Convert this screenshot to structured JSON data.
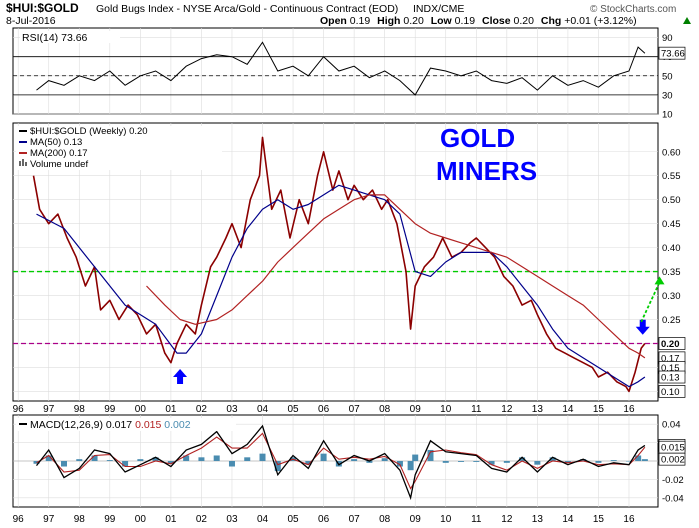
{
  "header": {
    "symbol": "$HUI:$GOLD",
    "name": "Gold Bugs Index - NYSE Arca/Gold - Continuous Contract (EOD)",
    "exchange": "INDX/CME",
    "watermark": "© StockCharts.com",
    "date": "8-Jul-2016",
    "open_label": "Open",
    "open": "0.19",
    "high_label": "High",
    "high": "0.20",
    "low_label": "Low",
    "low": "0.19",
    "close_label": "Close",
    "close": "0.20",
    "chg_label": "Chg",
    "chg": "+0.01 (+3.12%)",
    "chg_icon": "up-triangle",
    "chg_color": "#008000"
  },
  "colors": {
    "price": "#8b0000",
    "price_close": "#000000",
    "ma50": "#00008b",
    "ma200": "#b22222",
    "green_line": "#00cc00",
    "magenta_line": "#aa0088",
    "arrow_blue": "#0000ff",
    "annotation_blue": "#0000ff",
    "macd_hist": "#4a8cb0"
  },
  "annotation": {
    "line1": "GOLD",
    "line2": "MINERS"
  },
  "x_ticks": [
    "96",
    "97",
    "98",
    "99",
    "00",
    "01",
    "02",
    "03",
    "04",
    "05",
    "06",
    "07",
    "08",
    "09",
    "10",
    "11",
    "12",
    "13",
    "14",
    "15",
    "16"
  ],
  "chart_data": [
    {
      "type": "line",
      "panel": "RSI",
      "title": "RSI(14) 73.66",
      "legend_label": "RSI(14)",
      "legend_value": "73.66",
      "ylim": [
        10,
        100
      ],
      "yticks": [
        10,
        30,
        50,
        70,
        90
      ],
      "ref_lines": [
        30,
        50,
        70
      ],
      "last_value": 73.66,
      "last_label": "73.66",
      "x": [
        1996.6,
        1997.0,
        1997.5,
        1998.0,
        1998.5,
        1999.0,
        1999.5,
        2000.0,
        2000.5,
        2001.0,
        2001.5,
        2002.0,
        2002.5,
        2003.0,
        2003.5,
        2004.0,
        2004.5,
        2005.0,
        2005.5,
        2006.0,
        2006.5,
        2007.0,
        2007.5,
        2008.0,
        2008.5,
        2009.0,
        2009.5,
        2010.0,
        2010.5,
        2011.0,
        2011.5,
        2012.0,
        2012.5,
        2013.0,
        2013.5,
        2014.0,
        2014.5,
        2015.0,
        2015.5,
        2016.0,
        2016.3,
        2016.52
      ],
      "values": [
        35,
        45,
        40,
        50,
        45,
        55,
        40,
        50,
        55,
        45,
        60,
        68,
        72,
        70,
        62,
        85,
        55,
        60,
        50,
        70,
        55,
        60,
        48,
        55,
        45,
        30,
        58,
        55,
        50,
        55,
        45,
        42,
        48,
        35,
        50,
        40,
        45,
        38,
        50,
        55,
        80,
        73.66
      ]
    },
    {
      "type": "line",
      "panel": "Price",
      "legend": [
        {
          "name": "$HUI:$GOLD (Weekly)",
          "value": "0.20"
        },
        {
          "name": "MA(50)",
          "value": "0.13"
        },
        {
          "name": "MA(200)",
          "value": "0.17"
        },
        {
          "name": "Volume",
          "value": "undef"
        }
      ],
      "ylim": [
        0.08,
        0.66
      ],
      "yticks": [
        0.1,
        0.15,
        0.2,
        0.25,
        0.3,
        0.35,
        0.4,
        0.45,
        0.5,
        0.55,
        0.6
      ],
      "hlines": [
        {
          "y": 0.35,
          "style": "green"
        },
        {
          "y": 0.2,
          "style": "magenta"
        }
      ],
      "markers": [
        {
          "label": "0.20",
          "value": 0.2
        },
        {
          "label": "0.17",
          "value": 0.17
        },
        {
          "label": "0.15",
          "value": 0.15
        },
        {
          "label": "0.13",
          "value": 0.13
        },
        {
          "label": "0.10",
          "value": 0.1
        }
      ],
      "arrows": [
        {
          "x": 2001.3,
          "y": 0.13,
          "direction": "up",
          "color": "blue"
        },
        {
          "x": 2016.45,
          "y": 0.235,
          "direction": "down",
          "color": "blue"
        }
      ],
      "projection": {
        "from_x": 2016.4,
        "from_y": 0.245,
        "to_x": 2017.0,
        "to_y": 0.34
      },
      "series": [
        {
          "name": "$HUI:$GOLD (Weekly)",
          "x": [
            1996.5,
            1996.7,
            1997.0,
            1997.3,
            1997.6,
            1997.9,
            1998.2,
            1998.5,
            1998.7,
            1999.0,
            1999.3,
            1999.6,
            1999.9,
            2000.2,
            2000.5,
            2000.8,
            2001.0,
            2001.2,
            2001.5,
            2001.8,
            2002.0,
            2002.3,
            2002.5,
            2002.8,
            2003.0,
            2003.3,
            2003.6,
            2003.9,
            2004.0,
            2004.3,
            2004.6,
            2004.9,
            2005.2,
            2005.5,
            2005.8,
            2006.0,
            2006.3,
            2006.5,
            2006.8,
            2007.0,
            2007.3,
            2007.6,
            2007.9,
            2008.1,
            2008.4,
            2008.7,
            2008.85,
            2009.0,
            2009.3,
            2009.6,
            2009.9,
            2010.2,
            2010.5,
            2010.8,
            2011.0,
            2011.3,
            2011.6,
            2011.9,
            2012.2,
            2012.5,
            2012.8,
            2013.0,
            2013.3,
            2013.6,
            2013.9,
            2014.2,
            2014.5,
            2014.8,
            2015.0,
            2015.3,
            2015.6,
            2015.9,
            2016.0,
            2016.2,
            2016.4,
            2016.52
          ],
          "values": [
            0.55,
            0.48,
            0.45,
            0.47,
            0.42,
            0.38,
            0.32,
            0.36,
            0.27,
            0.29,
            0.25,
            0.28,
            0.26,
            0.22,
            0.24,
            0.18,
            0.16,
            0.2,
            0.24,
            0.22,
            0.28,
            0.36,
            0.38,
            0.42,
            0.45,
            0.4,
            0.5,
            0.55,
            0.63,
            0.48,
            0.52,
            0.42,
            0.5,
            0.45,
            0.55,
            0.6,
            0.52,
            0.56,
            0.5,
            0.53,
            0.5,
            0.52,
            0.48,
            0.5,
            0.45,
            0.35,
            0.23,
            0.32,
            0.36,
            0.38,
            0.42,
            0.38,
            0.39,
            0.41,
            0.42,
            0.4,
            0.38,
            0.34,
            0.32,
            0.28,
            0.29,
            0.26,
            0.22,
            0.19,
            0.18,
            0.17,
            0.16,
            0.15,
            0.13,
            0.14,
            0.12,
            0.11,
            0.1,
            0.14,
            0.19,
            0.2
          ]
        },
        {
          "name": "MA(50)",
          "x": [
            1996.6,
            1997.5,
            1998.5,
            1999.5,
            2000.5,
            2001.2,
            2001.5,
            2002.0,
            2002.5,
            2003.0,
            2003.5,
            2004.0,
            2004.5,
            2005.0,
            2005.5,
            2006.0,
            2006.5,
            2007.0,
            2007.5,
            2008.0,
            2008.5,
            2009.0,
            2009.5,
            2010.0,
            2010.5,
            2011.0,
            2011.5,
            2012.0,
            2012.5,
            2013.0,
            2013.5,
            2014.0,
            2014.5,
            2015.0,
            2015.5,
            2016.0,
            2016.3,
            2016.52
          ],
          "values": [
            0.47,
            0.44,
            0.36,
            0.28,
            0.24,
            0.18,
            0.18,
            0.22,
            0.3,
            0.38,
            0.44,
            0.48,
            0.5,
            0.48,
            0.49,
            0.51,
            0.53,
            0.52,
            0.51,
            0.5,
            0.47,
            0.35,
            0.34,
            0.37,
            0.39,
            0.39,
            0.39,
            0.36,
            0.32,
            0.28,
            0.23,
            0.19,
            0.17,
            0.15,
            0.13,
            0.11,
            0.12,
            0.13
          ]
        },
        {
          "name": "MA(200)",
          "x": [
            2000.2,
            2000.8,
            2001.3,
            2001.8,
            2002.5,
            2003.0,
            2003.5,
            2004.0,
            2004.5,
            2005.0,
            2005.5,
            2006.0,
            2006.5,
            2007.0,
            2007.5,
            2008.0,
            2008.5,
            2009.0,
            2009.5,
            2010.0,
            2010.5,
            2011.0,
            2011.5,
            2012.0,
            2012.5,
            2013.0,
            2013.5,
            2014.0,
            2014.5,
            2015.0,
            2015.5,
            2016.0,
            2016.3,
            2016.52
          ],
          "values": [
            0.32,
            0.28,
            0.25,
            0.24,
            0.25,
            0.27,
            0.3,
            0.33,
            0.37,
            0.4,
            0.43,
            0.46,
            0.48,
            0.5,
            0.51,
            0.51,
            0.48,
            0.45,
            0.43,
            0.42,
            0.41,
            0.4,
            0.39,
            0.38,
            0.36,
            0.34,
            0.32,
            0.3,
            0.28,
            0.25,
            0.22,
            0.19,
            0.18,
            0.17
          ]
        }
      ]
    },
    {
      "type": "line",
      "panel": "MACD",
      "legend_label": "MACD(12,26,9)",
      "values_label": [
        "0.017",
        "0.015",
        "0.002"
      ],
      "ylim": [
        -0.05,
        0.05
      ],
      "yticks": [
        -0.04,
        -0.02,
        0.0,
        0.02,
        0.04
      ],
      "markers": [
        {
          "label": "0.017",
          "value": 0.017
        },
        {
          "label": "0.015",
          "value": 0.015
        },
        {
          "label": "0.002",
          "value": 0.002
        }
      ],
      "series": [
        {
          "name": "MACD",
          "x": [
            1996.6,
            1997.0,
            1997.5,
            1998.0,
            1998.5,
            1999.0,
            1999.5,
            2000.0,
            2000.5,
            2001.0,
            2001.5,
            2002.0,
            2002.5,
            2003.0,
            2003.5,
            2004.0,
            2004.5,
            2005.0,
            2005.5,
            2006.0,
            2006.5,
            2007.0,
            2007.5,
            2008.0,
            2008.5,
            2008.85,
            2009.0,
            2009.5,
            2010.0,
            2010.5,
            2011.0,
            2011.5,
            2012.0,
            2012.5,
            2013.0,
            2013.5,
            2014.0,
            2014.5,
            2015.0,
            2015.5,
            2016.0,
            2016.3,
            2016.52
          ],
          "values": [
            -0.005,
            0.012,
            -0.018,
            -0.008,
            0.012,
            0.008,
            -0.012,
            -0.004,
            0.004,
            -0.006,
            0.012,
            0.018,
            0.032,
            0.008,
            0.018,
            0.038,
            -0.015,
            0.006,
            -0.008,
            0.022,
            -0.004,
            0.006,
            0.0,
            0.008,
            -0.01,
            -0.04,
            -0.015,
            0.022,
            0.01,
            0.008,
            0.006,
            -0.008,
            -0.012,
            0.004,
            -0.012,
            0.004,
            -0.004,
            0.002,
            -0.006,
            -0.002,
            -0.004,
            0.012,
            0.017
          ]
        },
        {
          "name": "Signal",
          "x": [
            1996.6,
            1997.0,
            1997.5,
            1998.0,
            1998.5,
            1999.0,
            1999.5,
            2000.0,
            2000.5,
            2001.0,
            2001.5,
            2002.0,
            2002.5,
            2003.0,
            2003.5,
            2004.0,
            2004.5,
            2005.0,
            2005.5,
            2006.0,
            2006.5,
            2007.0,
            2007.5,
            2008.0,
            2008.5,
            2008.85,
            2009.0,
            2009.5,
            2010.0,
            2010.5,
            2011.0,
            2011.5,
            2012.0,
            2012.5,
            2013.0,
            2013.5,
            2014.0,
            2014.5,
            2015.0,
            2015.5,
            2016.0,
            2016.3,
            2016.52
          ],
          "values": [
            -0.002,
            0.006,
            -0.012,
            -0.01,
            0.006,
            0.007,
            -0.006,
            -0.006,
            0.0,
            -0.003,
            0.006,
            0.014,
            0.026,
            0.014,
            0.014,
            0.03,
            -0.004,
            0.002,
            -0.004,
            0.014,
            0.002,
            0.004,
            0.002,
            0.005,
            -0.004,
            -0.03,
            -0.022,
            0.01,
            0.012,
            0.009,
            0.007,
            -0.004,
            -0.01,
            0.0,
            -0.008,
            0.0,
            -0.002,
            0.0,
            -0.004,
            -0.003,
            -0.004,
            0.006,
            0.015
          ]
        },
        {
          "name": "Histogram",
          "x": [
            1996.6,
            1997.0,
            1997.5,
            1998.0,
            1998.5,
            1999.0,
            1999.5,
            2000.0,
            2000.5,
            2001.0,
            2001.5,
            2002.0,
            2002.5,
            2003.0,
            2003.5,
            2004.0,
            2004.5,
            2005.0,
            2005.5,
            2006.0,
            2006.5,
            2007.0,
            2007.5,
            2008.0,
            2008.5,
            2008.85,
            2009.0,
            2009.5,
            2010.0,
            2010.5,
            2011.0,
            2011.5,
            2012.0,
            2012.5,
            2013.0,
            2013.5,
            2014.0,
            2014.5,
            2015.0,
            2015.5,
            2016.0,
            2016.3,
            2016.52
          ],
          "values": [
            -0.003,
            0.006,
            -0.006,
            0.002,
            0.006,
            0.001,
            -0.006,
            0.002,
            0.004,
            -0.003,
            0.006,
            0.004,
            0.006,
            -0.006,
            0.004,
            0.008,
            -0.011,
            0.004,
            -0.004,
            0.008,
            -0.006,
            0.002,
            -0.002,
            0.003,
            -0.006,
            -0.01,
            0.007,
            0.012,
            -0.002,
            -0.001,
            -0.001,
            -0.004,
            -0.002,
            0.004,
            -0.004,
            0.004,
            -0.002,
            0.002,
            -0.002,
            0.001,
            0.0,
            0.006,
            0.002
          ]
        }
      ]
    }
  ]
}
